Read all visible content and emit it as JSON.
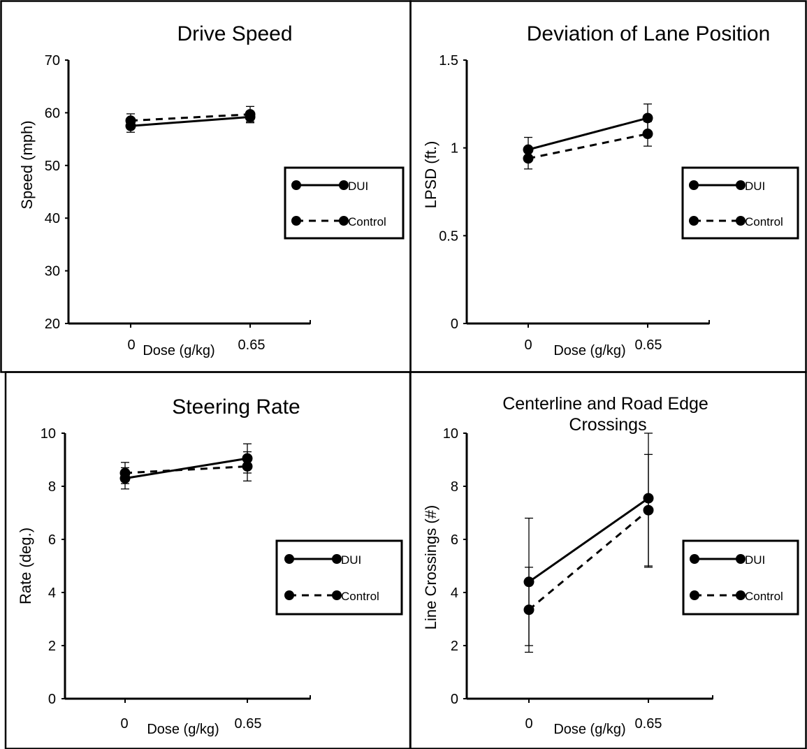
{
  "chart_data": [
    {
      "type": "line",
      "title": "Drive Speed",
      "xlabel": "Dose (g/kg)",
      "ylabel": "Speed (mph)",
      "categories": [
        "0",
        "0.65"
      ],
      "ylim": [
        20,
        70
      ],
      "yticks": [
        "20",
        "30",
        "40",
        "50",
        "60",
        "70"
      ],
      "series": [
        {
          "name": "DUI",
          "style": "solid",
          "values": [
            57.5,
            59.2
          ],
          "err_hi": [
            58.8,
            60.3
          ],
          "err_lo": [
            56.3,
            58.1
          ]
        },
        {
          "name": "Control",
          "style": "dashed",
          "values": [
            58.5,
            59.7
          ],
          "err_hi": [
            59.8,
            61.2
          ],
          "err_lo": [
            57.3,
            58.3
          ]
        }
      ]
    },
    {
      "type": "line",
      "title": "Deviation of Lane Position",
      "xlabel": "Dose (g/kg)",
      "ylabel": "LPSD (ft.)",
      "categories": [
        "0",
        "0.65"
      ],
      "ylim": [
        0,
        1.5
      ],
      "yticks": [
        "0",
        "0.5",
        "1",
        "1.5"
      ],
      "series": [
        {
          "name": "DUI",
          "style": "solid",
          "values": [
            0.99,
            1.17
          ],
          "err_hi": [
            1.06,
            1.25
          ],
          "err_lo": [
            0.93,
            1.09
          ]
        },
        {
          "name": "Control",
          "style": "dashed",
          "values": [
            0.94,
            1.08
          ],
          "err_hi": [
            1.0,
            1.15
          ],
          "err_lo": [
            0.88,
            1.01
          ]
        }
      ]
    },
    {
      "type": "line",
      "title": "Steering Rate",
      "xlabel": "Dose (g/kg)",
      "ylabel": "Rate (deg.)",
      "categories": [
        "0",
        "0.65"
      ],
      "ylim": [
        0,
        10
      ],
      "yticks": [
        "0",
        "2",
        "4",
        "6",
        "8",
        "10"
      ],
      "series": [
        {
          "name": "DUI",
          "style": "solid",
          "values": [
            8.3,
            9.05
          ],
          "err_hi": [
            8.7,
            9.6
          ],
          "err_lo": [
            7.9,
            8.5
          ]
        },
        {
          "name": "Control",
          "style": "dashed",
          "values": [
            8.5,
            8.75
          ],
          "err_hi": [
            8.9,
            9.3
          ],
          "err_lo": [
            8.1,
            8.2
          ]
        }
      ]
    },
    {
      "type": "line",
      "title": "Centerline and Road Edge Crossings",
      "xlabel": "Dose (g/kg)",
      "ylabel": "Line Crossings (#)",
      "categories": [
        "0",
        "0.65"
      ],
      "ylim": [
        0,
        10
      ],
      "yticks": [
        "0",
        "2",
        "4",
        "6",
        "8",
        "10"
      ],
      "series": [
        {
          "name": "DUI",
          "style": "solid",
          "values": [
            4.4,
            7.55
          ],
          "err_hi": [
            6.8,
            10.0
          ],
          "err_lo": [
            2.0,
            5.0
          ]
        },
        {
          "name": "Control",
          "style": "dashed",
          "values": [
            3.35,
            7.1
          ],
          "err_hi": [
            4.95,
            9.2
          ],
          "err_lo": [
            1.75,
            4.95
          ]
        }
      ]
    }
  ]
}
